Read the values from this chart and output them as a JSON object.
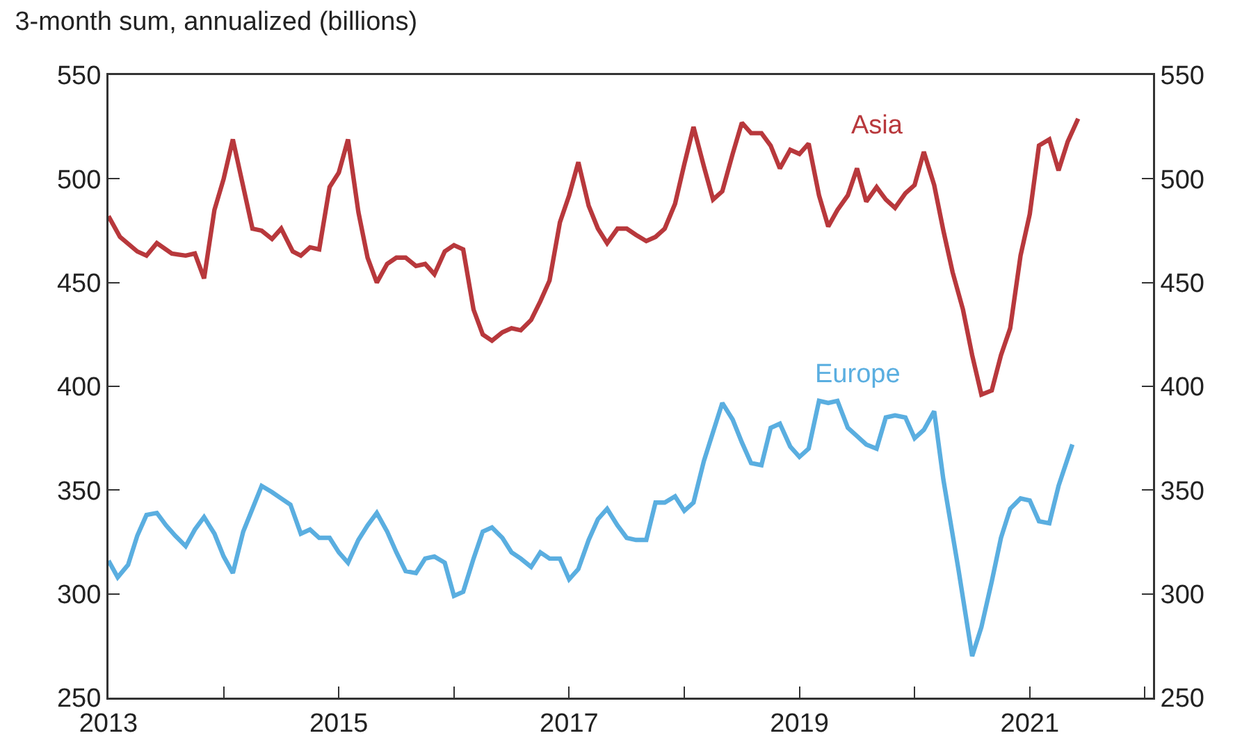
{
  "chart_data": {
    "type": "line",
    "title": "3-month sum, annualized (billions)",
    "xlim": [
      2013,
      2022.07
    ],
    "xticks": [
      {
        "value": 2013,
        "label": "2013"
      },
      {
        "value": 2014,
        "label": null
      },
      {
        "value": 2015,
        "label": "2015"
      },
      {
        "value": 2016,
        "label": null
      },
      {
        "value": 2017,
        "label": "2017"
      },
      {
        "value": 2018,
        "label": null
      },
      {
        "value": 2019,
        "label": "2019"
      },
      {
        "value": 2020,
        "label": null
      },
      {
        "value": 2021,
        "label": "2021"
      },
      {
        "value": 2022,
        "label": null
      }
    ],
    "ylim": [
      250,
      550
    ],
    "yticks": [
      250,
      300,
      350,
      400,
      450,
      500,
      550
    ],
    "y2lim": [
      250,
      550
    ],
    "y2ticks": [
      250,
      300,
      350,
      400,
      450,
      500,
      550
    ],
    "grid": false,
    "legend": false,
    "marker": "none",
    "line_style": "solid",
    "series": [
      {
        "name": "Asia",
        "color": "#b8383c",
        "x": [
          2013.0,
          2013.1,
          2013.25,
          2013.33,
          2013.42,
          2013.55,
          2013.67,
          2013.75,
          2013.83,
          2013.92,
          2014.0,
          2014.08,
          2014.25,
          2014.33,
          2014.42,
          2014.5,
          2014.6,
          2014.67,
          2014.75,
          2014.83,
          2014.92,
          2015.0,
          2015.08,
          2015.17,
          2015.25,
          2015.33,
          2015.42,
          2015.5,
          2015.58,
          2015.67,
          2015.75,
          2015.83,
          2015.92,
          2016.0,
          2016.08,
          2016.17,
          2016.25,
          2016.33,
          2016.42,
          2016.5,
          2016.58,
          2016.67,
          2016.75,
          2016.83,
          2016.92,
          2017.0,
          2017.08,
          2017.17,
          2017.25,
          2017.33,
          2017.42,
          2017.5,
          2017.58,
          2017.67,
          2017.75,
          2017.83,
          2017.92,
          2018.0,
          2018.08,
          2018.17,
          2018.25,
          2018.33,
          2018.42,
          2018.5,
          2018.58,
          2018.67,
          2018.75,
          2018.83,
          2018.92,
          2019.0,
          2019.08,
          2019.17,
          2019.25,
          2019.33,
          2019.42,
          2019.5,
          2019.58,
          2019.67,
          2019.75,
          2019.83,
          2019.92,
          2020.0,
          2020.08,
          2020.17,
          2020.25,
          2020.33,
          2020.42,
          2020.5,
          2020.58,
          2020.67,
          2020.75,
          2020.83,
          2020.92,
          2021.0,
          2021.08,
          2021.17,
          2021.25,
          2021.33,
          2021.42
        ],
        "values": [
          482,
          472,
          465,
          463,
          469,
          464,
          463,
          464,
          452,
          485,
          500,
          519,
          476,
          475,
          471,
          476,
          465,
          463,
          467,
          466,
          496,
          503,
          519,
          484,
          462,
          450,
          459,
          462,
          462,
          458,
          459,
          454,
          465,
          468,
          466,
          437,
          425,
          422,
          426,
          428,
          427,
          432,
          441,
          451,
          479,
          492,
          508,
          487,
          476,
          469,
          476,
          476,
          473,
          470,
          472,
          476,
          488,
          507,
          525,
          506,
          490,
          494,
          512,
          527,
          522,
          522,
          516,
          505,
          514,
          512,
          517,
          492,
          477,
          485,
          492,
          505,
          489,
          496,
          490,
          486,
          493,
          497,
          513,
          497,
          475,
          455,
          437,
          415,
          396,
          398,
          415,
          428,
          463,
          483,
          516,
          519,
          504,
          518,
          529
        ]
      },
      {
        "name": "Europe",
        "color": "#5aaee0",
        "x": [
          2013.0,
          2013.08,
          2013.17,
          2013.25,
          2013.33,
          2013.42,
          2013.5,
          2013.58,
          2013.67,
          2013.75,
          2013.83,
          2013.92,
          2014.0,
          2014.08,
          2014.17,
          2014.25,
          2014.33,
          2014.42,
          2014.5,
          2014.58,
          2014.67,
          2014.75,
          2014.83,
          2014.92,
          2015.0,
          2015.08,
          2015.17,
          2015.25,
          2015.33,
          2015.42,
          2015.5,
          2015.58,
          2015.67,
          2015.75,
          2015.83,
          2015.92,
          2016.0,
          2016.08,
          2016.17,
          2016.25,
          2016.33,
          2016.42,
          2016.5,
          2016.58,
          2016.67,
          2016.75,
          2016.83,
          2016.92,
          2017.0,
          2017.08,
          2017.17,
          2017.25,
          2017.33,
          2017.42,
          2017.5,
          2017.58,
          2017.67,
          2017.75,
          2017.83,
          2017.92,
          2018.0,
          2018.08,
          2018.17,
          2018.25,
          2018.33,
          2018.42,
          2018.5,
          2018.58,
          2018.67,
          2018.75,
          2018.83,
          2018.92,
          2019.0,
          2019.08,
          2019.17,
          2019.25,
          2019.33,
          2019.42,
          2019.5,
          2019.58,
          2019.67,
          2019.75,
          2019.83,
          2019.92,
          2020.0,
          2020.08,
          2020.17,
          2020.25,
          2020.38,
          2020.5,
          2020.58,
          2020.67,
          2020.75,
          2020.83,
          2020.92,
          2021.0,
          2021.08,
          2021.17,
          2021.25,
          2021.37
        ],
        "values": [
          316,
          308,
          314,
          328,
          338,
          339,
          333,
          328,
          323,
          331,
          337,
          329,
          318,
          310,
          330,
          341,
          352,
          349,
          346,
          343,
          329,
          331,
          327,
          327,
          320,
          315,
          326,
          333,
          339,
          330,
          320,
          311,
          310,
          317,
          318,
          315,
          299,
          301,
          317,
          330,
          332,
          327,
          320,
          317,
          313,
          320,
          317,
          317,
          307,
          312,
          326,
          336,
          341,
          333,
          327,
          326,
          326,
          344,
          344,
          347,
          340,
          344,
          364,
          378,
          392,
          384,
          373,
          363,
          362,
          380,
          382,
          371,
          366,
          370,
          393,
          392,
          393,
          380,
          376,
          372,
          370,
          385,
          386,
          385,
          375,
          379,
          388,
          355,
          312,
          270,
          284,
          306,
          327,
          341,
          346,
          345,
          335,
          334,
          352,
          372
        ]
      }
    ]
  }
}
